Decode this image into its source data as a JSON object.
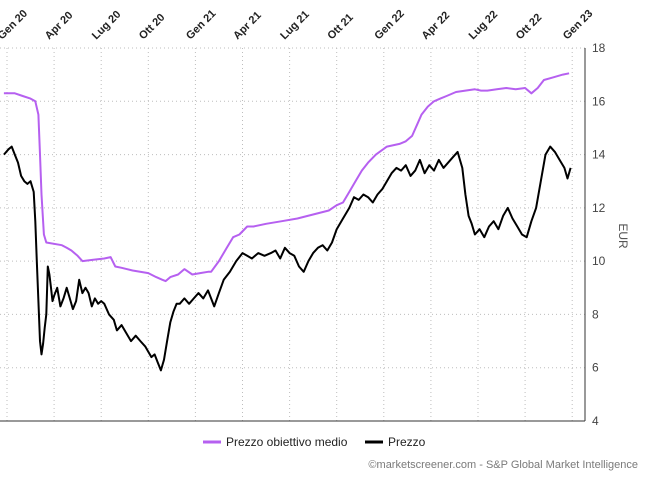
{
  "chart_data": {
    "type": "line",
    "xlabel": "",
    "ylabel": "EUR",
    "ylim": [
      4,
      18
    ],
    "yticks": [
      4,
      6,
      8,
      10,
      12,
      14,
      16,
      18
    ],
    "x_ticks": [
      {
        "label": "Gen 20",
        "t": 0
      },
      {
        "label": "Apr 20",
        "t": 3
      },
      {
        "label": "Lug 20",
        "t": 6
      },
      {
        "label": "Ott 20",
        "t": 9
      },
      {
        "label": "Gen 21",
        "t": 12
      },
      {
        "label": "Apr 21",
        "t": 15
      },
      {
        "label": "Lug 21",
        "t": 18
      },
      {
        "label": "Ott 21",
        "t": 21
      },
      {
        "label": "Gen 22",
        "t": 24
      },
      {
        "label": "Apr 22",
        "t": 27
      },
      {
        "label": "Lug 22",
        "t": 30
      },
      {
        "label": "Ott 22",
        "t": 33
      },
      {
        "label": "Gen 23",
        "t": 36
      }
    ],
    "grid": true,
    "legend_position": "bottom",
    "series": [
      {
        "name": "Prezzo obiettivo medio",
        "color": "#b660f0",
        "points": [
          [
            -0.2,
            16.3
          ],
          [
            0.5,
            16.3
          ],
          [
            1.0,
            16.2
          ],
          [
            1.5,
            16.1
          ],
          [
            1.8,
            16.0
          ],
          [
            2.0,
            15.5
          ],
          [
            2.1,
            14.0
          ],
          [
            2.2,
            12.5
          ],
          [
            2.35,
            11.0
          ],
          [
            2.5,
            10.7
          ],
          [
            3.5,
            10.6
          ],
          [
            3.8,
            10.5
          ],
          [
            4.1,
            10.4
          ],
          [
            4.5,
            10.2
          ],
          [
            4.8,
            10.0
          ],
          [
            5.5,
            10.05
          ],
          [
            6.2,
            10.1
          ],
          [
            6.6,
            10.15
          ],
          [
            6.9,
            9.8
          ],
          [
            7.3,
            9.75
          ],
          [
            8.0,
            9.65
          ],
          [
            9.0,
            9.55
          ],
          [
            9.5,
            9.4
          ],
          [
            9.9,
            9.3
          ],
          [
            10.1,
            9.25
          ],
          [
            10.4,
            9.4
          ],
          [
            10.9,
            9.5
          ],
          [
            11.3,
            9.7
          ],
          [
            11.8,
            9.5
          ],
          [
            12.3,
            9.55
          ],
          [
            12.8,
            9.6
          ],
          [
            13.0,
            9.6
          ],
          [
            13.5,
            10.0
          ],
          [
            14.0,
            10.5
          ],
          [
            14.4,
            10.9
          ],
          [
            14.8,
            11.0
          ],
          [
            15.3,
            11.3
          ],
          [
            15.7,
            11.3
          ],
          [
            16.5,
            11.4
          ],
          [
            17.5,
            11.5
          ],
          [
            18.5,
            11.6
          ],
          [
            19.5,
            11.75
          ],
          [
            20.5,
            11.9
          ],
          [
            21.0,
            12.1
          ],
          [
            21.4,
            12.2
          ],
          [
            21.8,
            12.6
          ],
          [
            22.2,
            13.0
          ],
          [
            22.6,
            13.4
          ],
          [
            23.0,
            13.7
          ],
          [
            23.5,
            14.0
          ],
          [
            24.2,
            14.3
          ],
          [
            25.0,
            14.4
          ],
          [
            25.4,
            14.5
          ],
          [
            25.8,
            14.7
          ],
          [
            26.1,
            15.1
          ],
          [
            26.4,
            15.5
          ],
          [
            26.8,
            15.8
          ],
          [
            27.2,
            16.0
          ],
          [
            27.6,
            16.1
          ],
          [
            28.0,
            16.2
          ],
          [
            28.6,
            16.35
          ],
          [
            29.2,
            16.4
          ],
          [
            29.8,
            16.45
          ],
          [
            30.2,
            16.4
          ],
          [
            30.6,
            16.4
          ],
          [
            31.2,
            16.45
          ],
          [
            31.8,
            16.5
          ],
          [
            32.4,
            16.45
          ],
          [
            33.0,
            16.5
          ],
          [
            33.4,
            16.3
          ],
          [
            33.8,
            16.5
          ],
          [
            34.2,
            16.8
          ],
          [
            34.8,
            16.9
          ],
          [
            35.4,
            17.0
          ],
          [
            35.8,
            17.05
          ]
        ]
      },
      {
        "name": "Prezzo",
        "color": "#000000",
        "points": [
          [
            -0.2,
            14.0
          ],
          [
            0.1,
            14.2
          ],
          [
            0.3,
            14.3
          ],
          [
            0.5,
            14.0
          ],
          [
            0.7,
            13.7
          ],
          [
            0.9,
            13.2
          ],
          [
            1.1,
            13.0
          ],
          [
            1.3,
            12.9
          ],
          [
            1.5,
            13.0
          ],
          [
            1.7,
            12.6
          ],
          [
            1.8,
            11.5
          ],
          [
            1.9,
            10.0
          ],
          [
            2.0,
            8.5
          ],
          [
            2.1,
            7.0
          ],
          [
            2.2,
            6.5
          ],
          [
            2.3,
            6.9
          ],
          [
            2.4,
            7.5
          ],
          [
            2.5,
            8.0
          ],
          [
            2.6,
            9.8
          ],
          [
            2.7,
            9.5
          ],
          [
            2.8,
            9.0
          ],
          [
            2.9,
            8.5
          ],
          [
            3.0,
            8.7
          ],
          [
            3.2,
            9.0
          ],
          [
            3.4,
            8.3
          ],
          [
            3.6,
            8.6
          ],
          [
            3.8,
            9.0
          ],
          [
            4.0,
            8.6
          ],
          [
            4.2,
            8.2
          ],
          [
            4.4,
            8.5
          ],
          [
            4.6,
            9.3
          ],
          [
            4.8,
            8.8
          ],
          [
            5.0,
            9.0
          ],
          [
            5.2,
            8.8
          ],
          [
            5.4,
            8.3
          ],
          [
            5.6,
            8.6
          ],
          [
            5.8,
            8.4
          ],
          [
            6.0,
            8.5
          ],
          [
            6.2,
            8.4
          ],
          [
            6.5,
            8.0
          ],
          [
            6.8,
            7.8
          ],
          [
            7.0,
            7.4
          ],
          [
            7.3,
            7.6
          ],
          [
            7.6,
            7.3
          ],
          [
            7.9,
            7.0
          ],
          [
            8.2,
            7.2
          ],
          [
            8.5,
            7.0
          ],
          [
            8.8,
            6.8
          ],
          [
            9.0,
            6.6
          ],
          [
            9.2,
            6.4
          ],
          [
            9.4,
            6.5
          ],
          [
            9.6,
            6.2
          ],
          [
            9.8,
            5.9
          ],
          [
            10.0,
            6.3
          ],
          [
            10.2,
            7.0
          ],
          [
            10.4,
            7.7
          ],
          [
            10.6,
            8.1
          ],
          [
            10.8,
            8.4
          ],
          [
            11.0,
            8.4
          ],
          [
            11.3,
            8.6
          ],
          [
            11.6,
            8.4
          ],
          [
            11.9,
            8.6
          ],
          [
            12.2,
            8.8
          ],
          [
            12.5,
            8.6
          ],
          [
            12.8,
            8.9
          ],
          [
            13.0,
            8.6
          ],
          [
            13.2,
            8.3
          ],
          [
            13.5,
            8.8
          ],
          [
            13.8,
            9.3
          ],
          [
            14.2,
            9.6
          ],
          [
            14.6,
            10.0
          ],
          [
            15.0,
            10.3
          ],
          [
            15.3,
            10.2
          ],
          [
            15.6,
            10.1
          ],
          [
            16.0,
            10.3
          ],
          [
            16.4,
            10.2
          ],
          [
            16.8,
            10.3
          ],
          [
            17.1,
            10.4
          ],
          [
            17.4,
            10.1
          ],
          [
            17.7,
            10.5
          ],
          [
            18.0,
            10.3
          ],
          [
            18.3,
            10.2
          ],
          [
            18.6,
            9.8
          ],
          [
            18.9,
            9.6
          ],
          [
            19.2,
            10.0
          ],
          [
            19.5,
            10.3
          ],
          [
            19.8,
            10.5
          ],
          [
            20.1,
            10.6
          ],
          [
            20.4,
            10.4
          ],
          [
            20.7,
            10.7
          ],
          [
            21.0,
            11.2
          ],
          [
            21.4,
            11.6
          ],
          [
            21.8,
            12.0
          ],
          [
            22.1,
            12.4
          ],
          [
            22.4,
            12.3
          ],
          [
            22.7,
            12.5
          ],
          [
            23.0,
            12.4
          ],
          [
            23.3,
            12.2
          ],
          [
            23.6,
            12.5
          ],
          [
            23.9,
            12.7
          ],
          [
            24.2,
            13.0
          ],
          [
            24.5,
            13.3
          ],
          [
            24.8,
            13.5
          ],
          [
            25.1,
            13.4
          ],
          [
            25.4,
            13.6
          ],
          [
            25.7,
            13.2
          ],
          [
            26.0,
            13.4
          ],
          [
            26.3,
            13.8
          ],
          [
            26.6,
            13.3
          ],
          [
            26.9,
            13.6
          ],
          [
            27.2,
            13.4
          ],
          [
            27.5,
            13.8
          ],
          [
            27.8,
            13.5
          ],
          [
            28.1,
            13.7
          ],
          [
            28.4,
            13.9
          ],
          [
            28.7,
            14.1
          ],
          [
            29.0,
            13.5
          ],
          [
            29.2,
            12.5
          ],
          [
            29.4,
            11.7
          ],
          [
            29.6,
            11.4
          ],
          [
            29.8,
            11.0
          ],
          [
            30.1,
            11.2
          ],
          [
            30.4,
            10.9
          ],
          [
            30.7,
            11.3
          ],
          [
            31.0,
            11.5
          ],
          [
            31.3,
            11.2
          ],
          [
            31.6,
            11.7
          ],
          [
            31.9,
            12.0
          ],
          [
            32.2,
            11.6
          ],
          [
            32.5,
            11.3
          ],
          [
            32.8,
            11.0
          ],
          [
            33.1,
            10.9
          ],
          [
            33.4,
            11.5
          ],
          [
            33.7,
            12.0
          ],
          [
            34.0,
            13.0
          ],
          [
            34.3,
            14.0
          ],
          [
            34.6,
            14.3
          ],
          [
            34.9,
            14.1
          ],
          [
            35.2,
            13.8
          ],
          [
            35.5,
            13.5
          ],
          [
            35.7,
            13.1
          ],
          [
            35.9,
            13.5
          ]
        ]
      }
    ]
  },
  "legend": [
    {
      "label": "Prezzo obiettivo medio",
      "color": "#b660f0"
    },
    {
      "label": "Prezzo",
      "color": "#000000"
    }
  ],
  "credit": "©marketscreener.com - S&P Global Market Intelligence"
}
